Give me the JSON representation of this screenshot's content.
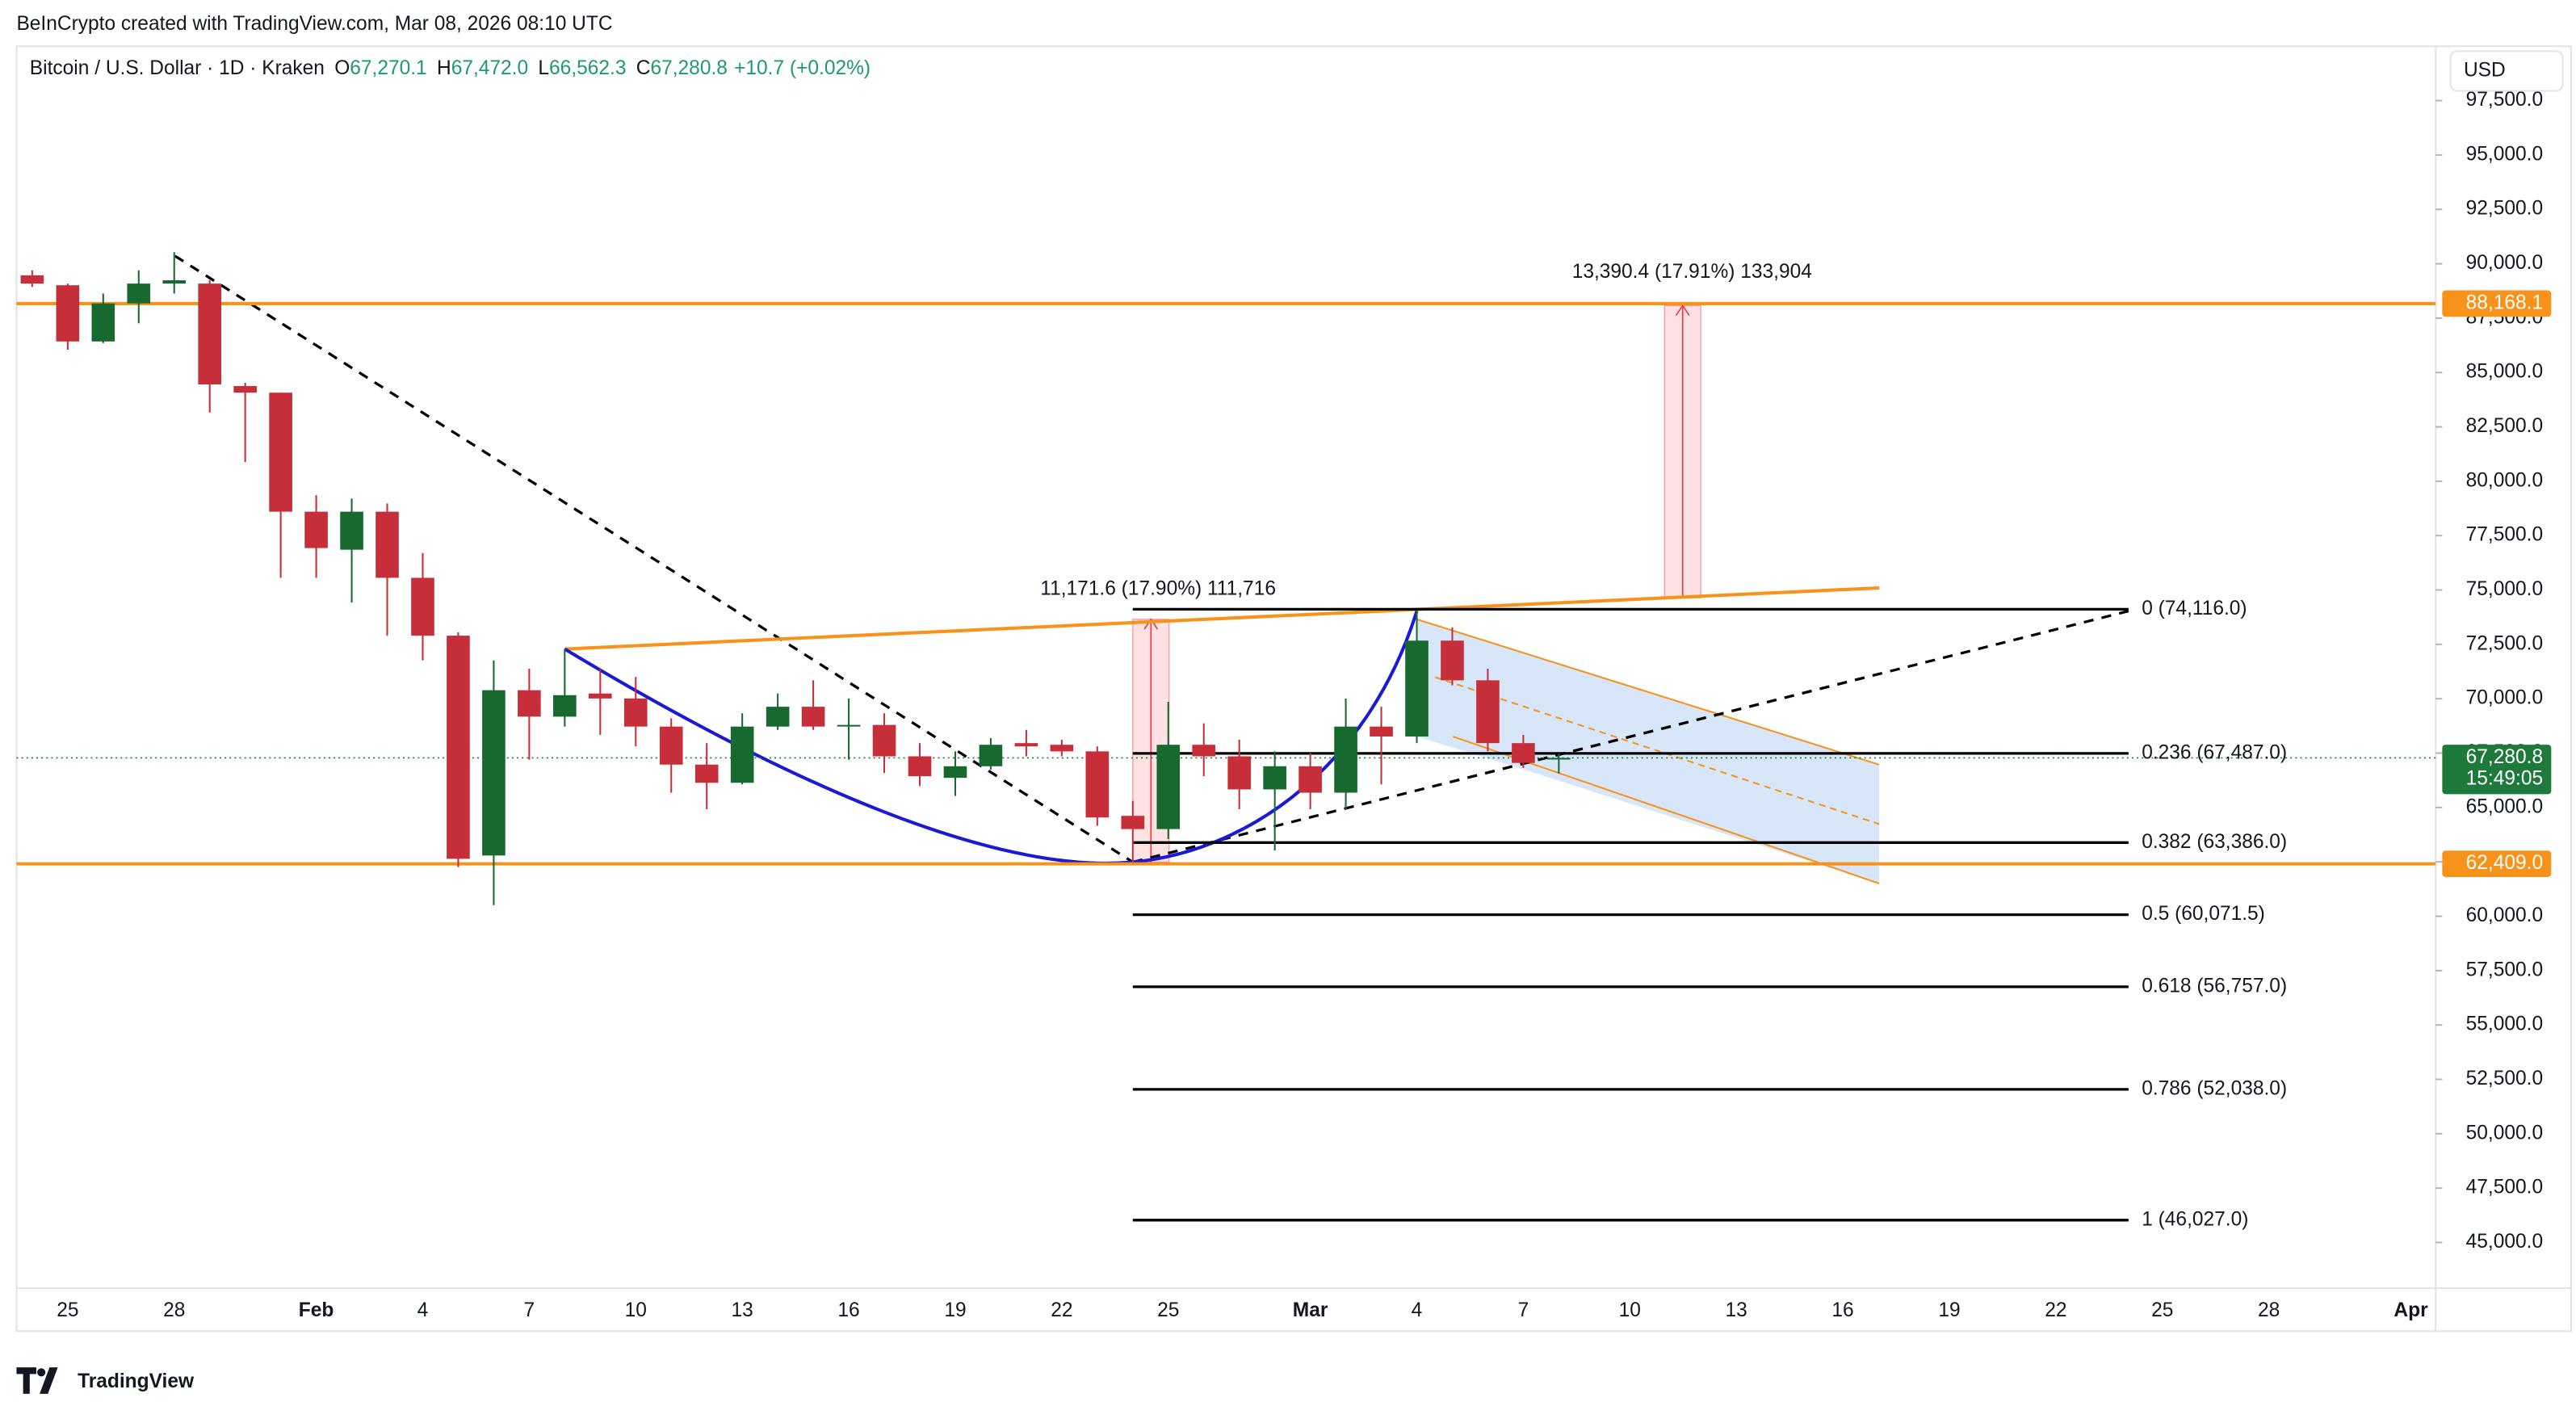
{
  "header": {
    "credit": "BeInCrypto created with TradingView.com, Mar 08, 2026 08:10 UTC",
    "symbol": "Bitcoin / U.S. Dollar · 1D · Kraken",
    "ohlc": [
      {
        "key": "O",
        "value": "67,270.1"
      },
      {
        "key": "H",
        "value": "67,472.0"
      },
      {
        "key": "L",
        "value": "66,562.3"
      },
      {
        "key": "C",
        "value": "67,280.8"
      }
    ],
    "change": "+10.7 (+0.02%)",
    "currency": "USD",
    "brand": "TradingView"
  },
  "chart_data": {
    "type": "candlestick",
    "categories": [
      null,
      "25",
      null,
      null,
      "28",
      null,
      null,
      null,
      "Feb",
      null,
      null,
      "4",
      null,
      null,
      "7",
      null,
      null,
      "10",
      null,
      null,
      "13",
      null,
      null,
      "16",
      null,
      null,
      "19",
      null,
      null,
      "22",
      null,
      null,
      "25",
      null,
      null,
      null,
      "Mar",
      null,
      null,
      "4",
      null,
      null,
      "7",
      null,
      null,
      "10",
      null,
      null,
      "13",
      null,
      null,
      "16",
      null,
      null,
      "19",
      null,
      null,
      "22",
      null,
      null,
      "25",
      null,
      null,
      "28",
      null,
      null,
      null,
      "Apr"
    ],
    "open": [
      89468,
      89012,
      86428,
      88176,
      89088,
      89088,
      84376,
      84072,
      78600,
      76852,
      78600,
      75560,
      72900,
      62792,
      70392,
      69176,
      70240,
      70012,
      68720,
      66972,
      66136,
      68720,
      69632,
      68720,
      68796,
      67352,
      66364,
      66896,
      67960,
      67884,
      67580,
      64616,
      64008,
      67884,
      67352,
      65832,
      66896,
      65680,
      68720,
      68264,
      72672,
      70848,
      67960,
      67270.1,
      null,
      null,
      null,
      null,
      null,
      null,
      null,
      null,
      null,
      null,
      null,
      null,
      null,
      null,
      null,
      null,
      null,
      null,
      null,
      null,
      null,
      null,
      null,
      null
    ],
    "high": [
      89696,
      89088,
      88632,
      89696,
      90532,
      89240,
      84528,
      84072,
      79360,
      79208,
      78980,
      76700,
      73052,
      71760,
      71380,
      72292,
      71380,
      71000,
      69100,
      67960,
      69328,
      70240,
      70848,
      70012,
      69328,
      67960,
      67580,
      68188,
      68568,
      68112,
      67808,
      65300,
      69860,
      68872,
      68112,
      67580,
      67504,
      70012,
      69632,
      74040,
      73280,
      71380,
      68340,
      67472.0,
      null,
      null,
      null,
      null,
      null,
      null,
      null,
      null,
      null,
      null,
      null,
      null,
      null,
      null,
      null,
      null,
      null,
      null,
      null,
      null,
      null,
      null,
      null,
      null
    ],
    "low": [
      88936,
      86048,
      86352,
      87264,
      88632,
      83160,
      80880,
      75560,
      75560,
      74420,
      72900,
      71760,
      62260,
      60512,
      67200,
      68720,
      68340,
      67808,
      65680,
      64920,
      66060,
      68568,
      68568,
      67200,
      66592,
      65984,
      65528,
      66744,
      67352,
      67352,
      64160,
      62488,
      63552,
      66440,
      64920,
      63020,
      64920,
      64920,
      66060,
      67960,
      70620,
      67580,
      66820,
      66562.3,
      null,
      null,
      null,
      null,
      null,
      null,
      null,
      null,
      null,
      null,
      null,
      null,
      null,
      null,
      null,
      null,
      null,
      null,
      null,
      null,
      null,
      null,
      null,
      null
    ],
    "close": [
      89088,
      86428,
      88176,
      89088,
      89240,
      84452,
      84072,
      78600,
      76928,
      78600,
      75560,
      72900,
      62640,
      70392,
      69176,
      70164,
      70012,
      68720,
      66972,
      66136,
      68720,
      69632,
      68720,
      68796,
      67352,
      66440,
      66896,
      67884,
      67808,
      67580,
      64540,
      64008,
      67884,
      67352,
      65832,
      66896,
      65680,
      68720,
      68264,
      72672,
      70848,
      67960,
      67048,
      67280.8,
      null,
      null,
      null,
      null,
      null,
      null,
      null,
      null,
      null,
      null,
      null,
      null,
      null,
      null,
      null,
      null,
      null,
      null,
      null,
      null,
      null,
      null,
      null,
      null
    ],
    "up_color": "#17692f",
    "down_color": "#c62f3a",
    "ylim": [
      42900,
      100000
    ],
    "yticks": [
      {
        "value": 45000,
        "label": "45,000.0"
      },
      {
        "value": 47500,
        "label": "47,500.0"
      },
      {
        "value": 50000,
        "label": "50,000.0"
      },
      {
        "value": 52500,
        "label": "52,500.0"
      },
      {
        "value": 55000,
        "label": "55,000.0"
      },
      {
        "value": 57500,
        "label": "57,500.0"
      },
      {
        "value": 60000,
        "label": "60,000.0"
      },
      {
        "value": 62500,
        "label": "62,500.0"
      },
      {
        "value": 65000,
        "label": "65,000.0"
      },
      {
        "value": 67500,
        "label": "67,500.0"
      },
      {
        "value": 70000,
        "label": "70,000.0"
      },
      {
        "value": 72500,
        "label": "72,500.0"
      },
      {
        "value": 75000,
        "label": "75,000.0"
      },
      {
        "value": 77500,
        "label": "77,500.0"
      },
      {
        "value": 80000,
        "label": "80,000.0"
      },
      {
        "value": 82500,
        "label": "82,500.0"
      },
      {
        "value": 85000,
        "label": "85,000.0"
      },
      {
        "value": 87500,
        "label": "87,500.0"
      },
      {
        "value": 90000,
        "label": "90,000.0"
      },
      {
        "value": 92500,
        "label": "92,500.0"
      },
      {
        "value": 95000,
        "label": "95,000.0"
      },
      {
        "value": 97500,
        "label": "97,500.0"
      }
    ],
    "price_levels": [
      {
        "value": 88168.1,
        "label": "88,168.1",
        "color": "#f7931a"
      },
      {
        "value": 67280.8,
        "label": "67,280.8",
        "color": "#1e7a3a",
        "countdown": "15:49:05"
      },
      {
        "value": 62409.0,
        "label": "62,409.0",
        "color": "#f7931a"
      }
    ],
    "fib_levels": [
      {
        "value": 74116.0,
        "label": "0 (74,116.0)"
      },
      {
        "value": 67487.0,
        "label": "0.236 (67,487.0)"
      },
      {
        "value": 63386.0,
        "label": "0.382 (63,386.0)"
      },
      {
        "value": 60071.5,
        "label": "0.5 (60,071.5)"
      },
      {
        "value": 56757.0,
        "label": "0.618 (56,757.0)"
      },
      {
        "value": 52038.0,
        "label": "0.786 (52,038.0)"
      },
      {
        "value": 46027.0,
        "label": "1 (46,027.0)"
      }
    ],
    "annotations": [
      "11,171.6 (17.90%) 111,716",
      "13,390.4 (17.91%) 133,904"
    ]
  }
}
